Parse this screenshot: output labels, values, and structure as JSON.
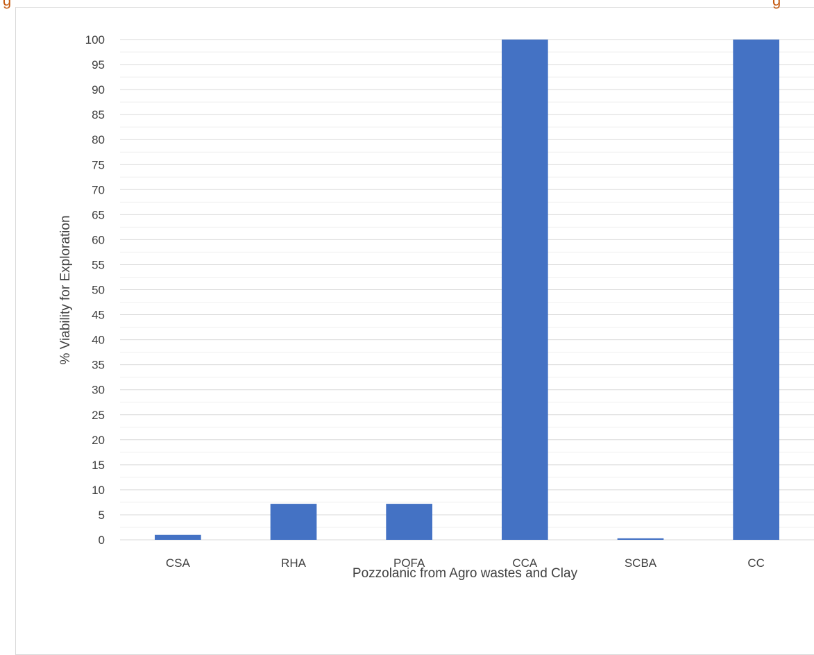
{
  "chart_data": {
    "type": "bar",
    "title_fragment_left": "g",
    "title_fragment_right": "g",
    "categories": [
      "CSA",
      "RHA",
      "POFA",
      "CCA",
      "SCBA",
      "CC"
    ],
    "values": [
      1,
      7.2,
      7.2,
      100,
      0.3,
      100
    ],
    "xlabel": "Pozzolanic from Agro wastes and Clay",
    "ylabel": "% Viability for Exploration",
    "ylim": [
      0,
      100
    ],
    "ytick_step": 5,
    "grid": "major and minor horizontal",
    "legend": "none",
    "bar_color": "#4472c4",
    "gridline_color": "#d9d9d9",
    "title_color": "#c55a11"
  }
}
